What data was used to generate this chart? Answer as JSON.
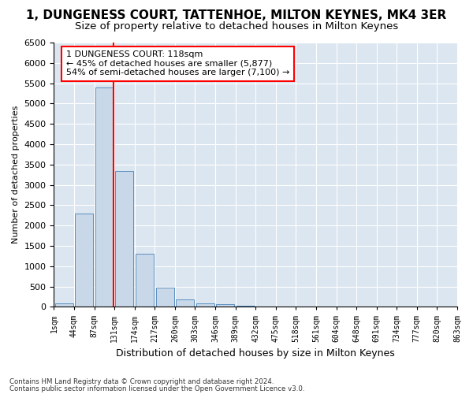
{
  "title": "1, DUNGENESS COURT, TATTENHOE, MILTON KEYNES, MK4 3ER",
  "subtitle": "Size of property relative to detached houses in Milton Keynes",
  "xlabel": "Distribution of detached houses by size in Milton Keynes",
  "ylabel": "Number of detached properties",
  "footer_line1": "Contains HM Land Registry data © Crown copyright and database right 2024.",
  "footer_line2": "Contains public sector information licensed under the Open Government Licence v3.0.",
  "bin_labels": [
    "1sqm",
    "44sqm",
    "87sqm",
    "131sqm",
    "174sqm",
    "217sqm",
    "260sqm",
    "303sqm",
    "346sqm",
    "389sqm",
    "432sqm",
    "475sqm",
    "518sqm",
    "561sqm",
    "604sqm",
    "648sqm",
    "691sqm",
    "734sqm",
    "777sqm",
    "820sqm",
    "863sqm"
  ],
  "bar_values": [
    80,
    2300,
    5400,
    3350,
    1300,
    480,
    175,
    80,
    60,
    30,
    10,
    5,
    5,
    3,
    2,
    1,
    1,
    1,
    1,
    1
  ],
  "bar_color": "#c8d8e8",
  "bar_edgecolor": "#5a8fc0",
  "vline_color": "red",
  "annotation_text": "1 DUNGENESS COURT: 118sqm\n← 45% of detached houses are smaller (5,877)\n54% of semi-detached houses are larger (7,100) →",
  "annotation_box_color": "white",
  "annotation_box_edgecolor": "red",
  "ylim": [
    0,
    6500
  ],
  "yticks": [
    0,
    500,
    1000,
    1500,
    2000,
    2500,
    3000,
    3500,
    4000,
    4500,
    5000,
    5500,
    6000,
    6500
  ],
  "background_color": "#dce6f0",
  "title_fontsize": 11,
  "subtitle_fontsize": 9.5
}
